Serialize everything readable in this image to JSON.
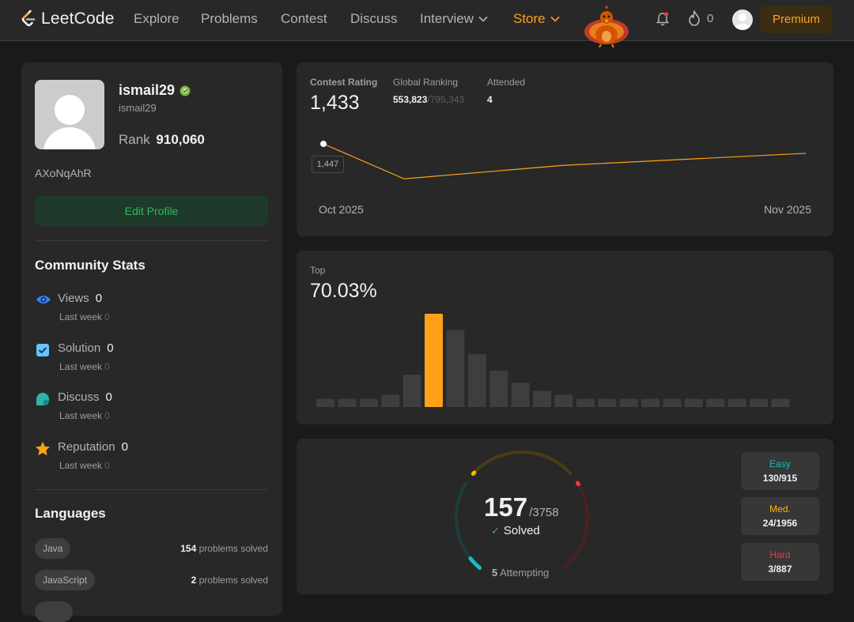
{
  "nav": {
    "logo_text": "LeetCode",
    "links": [
      "Explore",
      "Problems",
      "Contest",
      "Discuss"
    ],
    "interview_label": "Interview",
    "store_label": "Store",
    "streak_count": "0",
    "premium_label": "Premium",
    "accent_color": "#ffa116"
  },
  "profile": {
    "username": "ismail29",
    "handle": "ismail29",
    "rank_label": "Rank",
    "rank_value": "910,060",
    "bio": "AXoNqAhR",
    "edit_button": "Edit Profile"
  },
  "community": {
    "title": "Community Stats",
    "last_week_label": "Last week",
    "items": [
      {
        "label": "Views",
        "value": "0",
        "last_week": "0",
        "icon": "eye-icon",
        "color": "#3b82f6"
      },
      {
        "label": "Solution",
        "value": "0",
        "last_week": "0",
        "icon": "checkbox-icon",
        "color": "#62c6ff"
      },
      {
        "label": "Discuss",
        "value": "0",
        "last_week": "0",
        "icon": "chat-icon",
        "color": "#2db5a8"
      },
      {
        "label": "Reputation",
        "value": "0",
        "last_week": "0",
        "icon": "star-icon",
        "color": "#ffa116"
      }
    ]
  },
  "languages": {
    "title": "Languages",
    "suffix": "problems solved",
    "items": [
      {
        "name": "Java",
        "count": "154"
      },
      {
        "name": "JavaScript",
        "count": "2"
      }
    ]
  },
  "contest": {
    "rating_label": "Contest Rating",
    "rating_value": "1,433",
    "global_label": "Global Ranking",
    "global_value": "553,823",
    "global_total": "/795,343",
    "attended_label": "Attended",
    "attended_value": "4",
    "tooltip": "1,447",
    "axis_start": "Oct 2025",
    "axis_end": "Nov 2025"
  },
  "top": {
    "label": "Top",
    "value": "70.03%"
  },
  "solved": {
    "count": "157",
    "total": "/3758",
    "label": "Solved",
    "attempting_count": "5",
    "attempting_label": "Attempting",
    "difficulties": [
      {
        "label": "Easy",
        "value": "130/915",
        "color": "#1cbaba",
        "solved": 130,
        "total": 915
      },
      {
        "label": "Med.",
        "value": "24/1956",
        "color": "#ffb700",
        "solved": 24,
        "total": 1956
      },
      {
        "label": "Hard",
        "value": "3/887",
        "color": "#f63737",
        "solved": 3,
        "total": 887
      }
    ]
  },
  "chart_data": [
    {
      "type": "line",
      "title": "Contest Rating",
      "x": [
        "Oct 2025",
        "",
        "",
        "Nov 2025"
      ],
      "values": [
        1447,
        1395,
        1415,
        1433
      ],
      "ylim": [
        1380,
        1460
      ],
      "highlight_index": 0,
      "color": "#ffa116"
    },
    {
      "type": "bar",
      "title": "Top 70.03%",
      "values": [
        2,
        2,
        2,
        3,
        8,
        23,
        19,
        13,
        9,
        6,
        4,
        3,
        2,
        2,
        2,
        2,
        2,
        2,
        2,
        2,
        2,
        2
      ],
      "highlight_index": 5,
      "highlight_color": "#ffa116",
      "bar_color": "#3e3e3e"
    }
  ]
}
